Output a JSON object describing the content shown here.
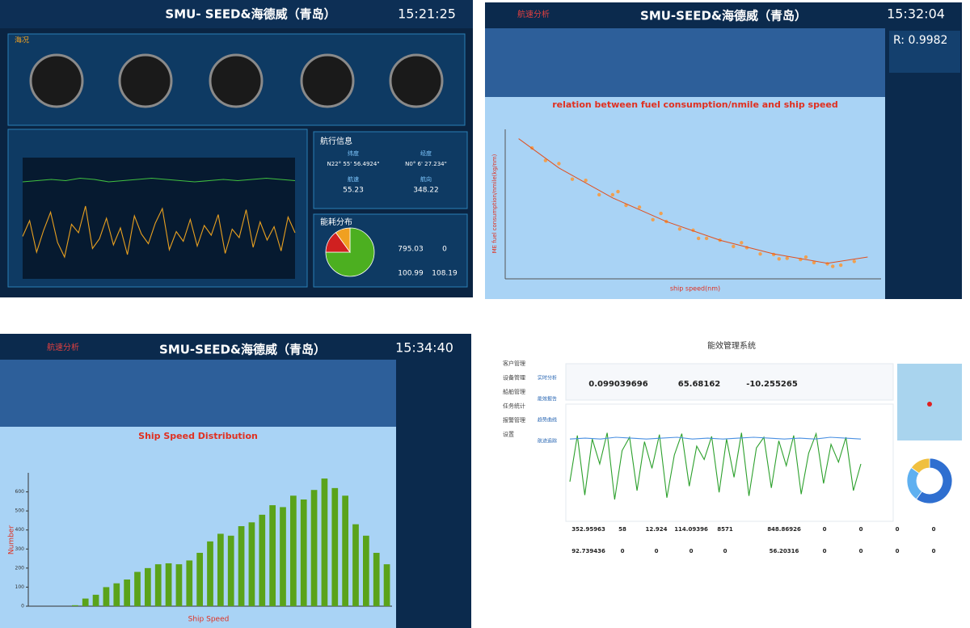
{
  "screens": {
    "q1": {
      "brand": "SMU- SEED&海德威（青岛）",
      "time": "15:21:25",
      "panel": "海况",
      "nav_title": "航行信息",
      "lat_label": "纬度",
      "lat": "N22° 55' 56.4924\"",
      "lon_label": "经度",
      "lon": "N0° 6' 27.234\"",
      "speed_label": "航速",
      "speed": 55.23,
      "heading_label": "航向",
      "heading": 348.22,
      "energy_title": "能耗分布",
      "energy": [
        795.03,
        0,
        100.99,
        108.19
      ]
    },
    "q2": {
      "section": "航速分析",
      "brand": "SMU-SEED&海德威（青岛）",
      "time": "15:32:04",
      "r": "R: 0.9982"
    },
    "q3": {
      "section": "航速分析",
      "brand": "SMU-SEED&海德威（青岛）",
      "time": "15:34:40"
    },
    "q4": {
      "title": "能效管理系统",
      "nav": [
        "客户管理",
        "设备管理",
        "船舶管理",
        "任务统计",
        "报警管理",
        "设置"
      ],
      "tools": [
        "实时分析",
        "能效报告",
        "趋势曲线",
        "航迹追踪"
      ],
      "metrics": [
        0.099039696,
        65.68162,
        -10.255265
      ],
      "row1": [
        352.95963,
        58,
        12.924,
        114.09396,
        8571,
        848.86926,
        0,
        0,
        0,
        0
      ],
      "row2": [
        92.739436,
        0,
        0,
        0,
        0,
        56.20316,
        0,
        0,
        0,
        0
      ]
    }
  },
  "chart_data": [
    {
      "type": "line",
      "ylim": [
        0,
        100
      ],
      "series": [
        {
          "color": "#e8a020",
          "values": [
            35,
            48,
            22,
            40,
            55,
            30,
            18,
            45,
            38,
            60,
            25,
            33,
            50,
            28,
            42,
            20,
            52,
            37,
            29,
            46,
            58,
            24,
            39,
            31,
            49,
            27,
            44,
            36,
            53,
            21,
            41,
            34,
            57,
            26,
            47,
            32,
            43,
            23,
            51,
            38
          ]
        },
        {
          "color": "#40c040",
          "values": [
            80,
            81,
            82,
            81,
            83,
            82,
            80,
            81,
            82,
            83,
            82,
            81,
            80,
            81,
            82,
            81,
            82,
            83,
            82,
            81
          ]
        }
      ]
    },
    {
      "type": "scatter",
      "title": "relation between fuel consumption/nmile and ship speed",
      "xlabel": "ship speed(nm)",
      "ylabel": "ME fuel consumption/nmile(kg/nm)",
      "xlim": [
        0,
        14
      ],
      "ylim": [
        60,
        300
      ],
      "color": "#f0a050",
      "x": [
        1.0,
        1.5,
        2,
        2.5,
        3,
        3.5,
        4,
        4.5,
        5,
        5.5,
        6,
        6.5,
        7,
        7.5,
        8,
        8.5,
        9,
        9.5,
        10,
        10.5,
        11,
        11.5,
        12,
        12.5,
        13,
        4.2,
        5.8,
        7.2,
        8.8,
        10.2,
        11.2,
        12.2
      ],
      "values": [
        270,
        250,
        245,
        220,
        218,
        195,
        195,
        178,
        175,
        155,
        152,
        140,
        138,
        125,
        122,
        112,
        110,
        100,
        99,
        93,
        91,
        86,
        84,
        82,
        88,
        200,
        165,
        125,
        118,
        92,
        95,
        80
      ],
      "fit_color": "#e05020",
      "fit_x": [
        0.5,
        2,
        4,
        6,
        8,
        10,
        12,
        13.5
      ],
      "fit_values": [
        285,
        238,
        190,
        152,
        122,
        100,
        85,
        95
      ]
    },
    {
      "type": "bar",
      "title": "Ship Speed Distribution",
      "xlabel": "Ship Speed",
      "ylabel": "Number",
      "color": "#5aa31a",
      "ylim": [
        0,
        700
      ],
      "yticks": [
        0,
        100,
        200,
        300,
        400,
        500,
        600
      ],
      "values": [
        0,
        0,
        0,
        0,
        5,
        40,
        60,
        100,
        120,
        140,
        180,
        200,
        220,
        225,
        220,
        240,
        280,
        340,
        380,
        370,
        420,
        440,
        480,
        530,
        520,
        580,
        560,
        610,
        670,
        620,
        580,
        430,
        370,
        280,
        220
      ]
    },
    {
      "type": "line",
      "ylim": [
        0,
        100
      ],
      "series": [
        {
          "color": "#2ca02c",
          "values": [
            40,
            92,
            25,
            88,
            60,
            95,
            20,
            75,
            90,
            30,
            85,
            55,
            93,
            22,
            70,
            94,
            35,
            80,
            65,
            91,
            28,
            88,
            45,
            95,
            24,
            78,
            90,
            33,
            86,
            58,
            92,
            26,
            72,
            94,
            38,
            82,
            62,
            90,
            30,
            60
          ]
        },
        {
          "color": "#4a90e2",
          "values": [
            88,
            89,
            88,
            90,
            89,
            88,
            89,
            90,
            88,
            89,
            88,
            89,
            90,
            89,
            88,
            89,
            88,
            90,
            89,
            88
          ]
        }
      ]
    },
    {
      "type": "pie",
      "values": [
        75,
        15,
        10
      ],
      "colors": [
        "#4caf20",
        "#d02020",
        "#f0a020"
      ]
    },
    {
      "type": "pie",
      "values": [
        60,
        25,
        15
      ],
      "colors": [
        "#2f6fd0",
        "#5fb0f0",
        "#f0c040"
      ]
    }
  ]
}
